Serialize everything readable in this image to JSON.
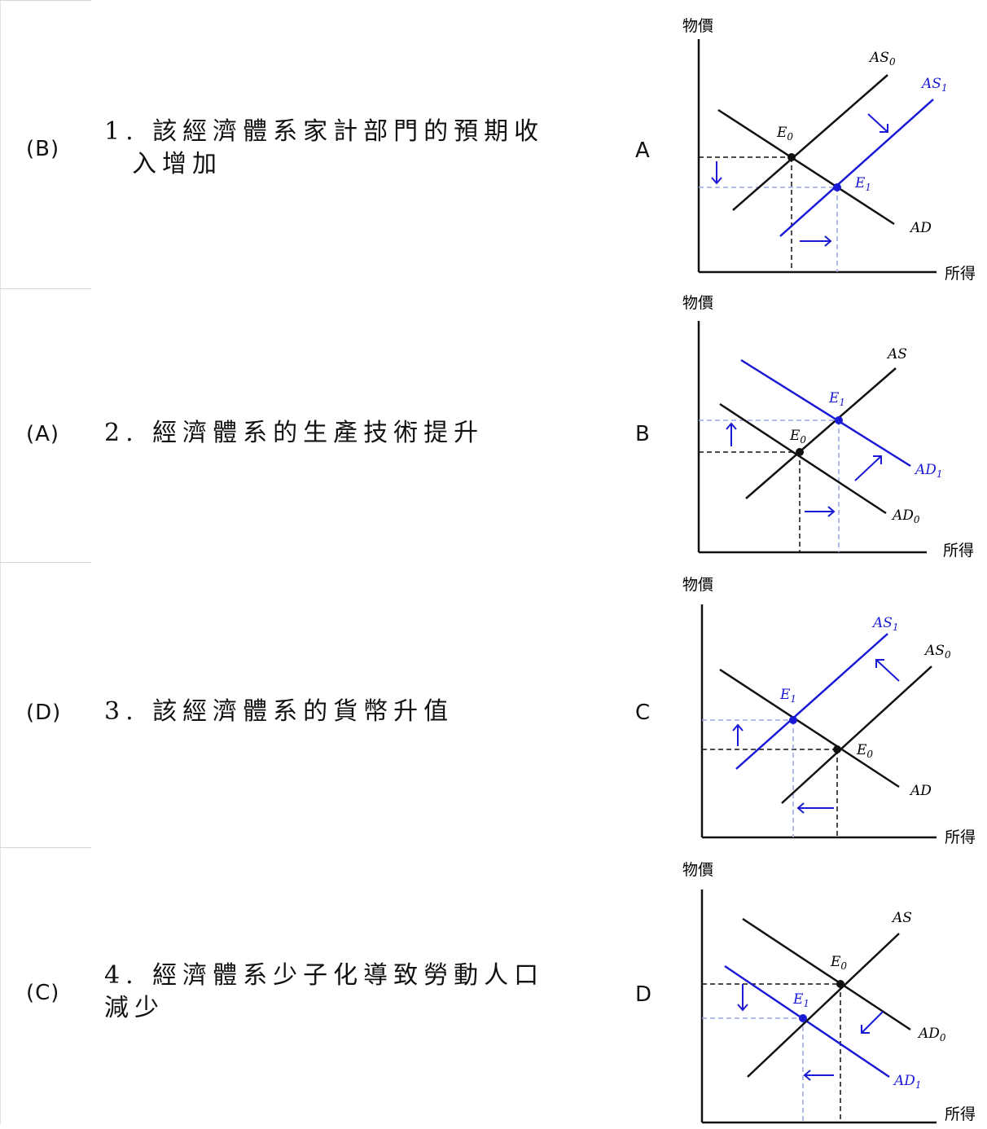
{
  "rows": [
    {
      "answer": "(B)",
      "statement_lines": [
        "1. 該經濟體系家計部門的預期收",
        "入增加"
      ],
      "letter": "A"
    },
    {
      "answer": "(A)",
      "statement_lines": [
        "2. 經濟體系的生產技術提升"
      ],
      "letter": "B"
    },
    {
      "answer": "(D)",
      "statement_lines": [
        "3. 該經濟體系的貨幣升值"
      ],
      "letter": "C"
    },
    {
      "answer": "(C)",
      "statement_lines": [
        "4. 經濟體系少子化導致勞動人口",
        "減少"
      ],
      "letter": "D"
    }
  ],
  "axis": {
    "y_label": "物價",
    "x_label": "所得"
  },
  "labels": {
    "E0": "E",
    "E1": "E",
    "AS": "AS",
    "AS0": "AS",
    "AS1": "AS",
    "AD": "AD",
    "AD0": "AD",
    "AD1": "AD",
    "sub0": "0",
    "sub1": "1"
  },
  "colors": {
    "black": "#111111",
    "blue": "#1a1ad6",
    "dashed_blue": "#9aa6e8"
  }
}
